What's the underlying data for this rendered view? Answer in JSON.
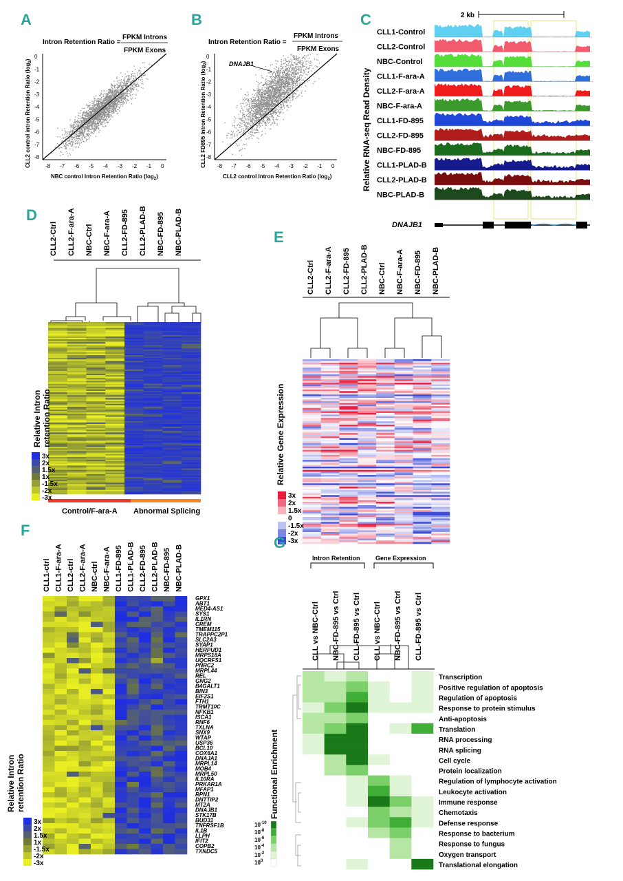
{
  "colors": {
    "panel_label": "#2aa59a",
    "yellow": "#e8ee22",
    "blue": "#1f2fe0",
    "red": "#e32020",
    "pink": "#f07aa8",
    "pale_blue": "#8a96e6",
    "green_dark": "#1f7d1f",
    "green_light": "#e2f5dc",
    "scatter_gray": "#8a8a8a",
    "control_bar": "#ea3a2a",
    "abnormal_bar": "#f28a2a"
  },
  "panelA": {
    "label": "A",
    "formula_lhs": "Intron Retention Ratio =",
    "formula_num": "FPKM Introns",
    "formula_den": "FPKM Exons",
    "xlabel": "NBC control Intron Retention Ratio (log",
    "ylabel": "CLL2 control intron Retention Ratio (log",
    "log_base": "2",
    "label_suffix": ")",
    "xticks": [
      "-8",
      "-7",
      "-6",
      "-5",
      "-4",
      "-3",
      "-2",
      "-1",
      "0"
    ],
    "yticks": [
      "0",
      "-1",
      "-2",
      "-3",
      "-4",
      "-5",
      "-6",
      "-7",
      "-8"
    ]
  },
  "panelB": {
    "label": "B",
    "formula_lhs": "Intron Retention Ratio =",
    "formula_num": "FPKM Introns",
    "formula_den": "FPKM Exons",
    "annotation": "DNAJB1",
    "xlabel": "CLL2 control Intron Retention Ratio (log",
    "ylabel": "CLL2 FD895 Intron Retention Ratio (log",
    "log_base": "2",
    "label_suffix": ")",
    "xticks": [
      "-8",
      "-7",
      "-6",
      "-5",
      "-4",
      "-3",
      "-2",
      "-1",
      "0"
    ],
    "yticks": [
      "0",
      "-1",
      "-2",
      "-3",
      "-4",
      "-5",
      "-6",
      "-7",
      "-8"
    ]
  },
  "panelC": {
    "label": "C",
    "scale": "2 kb",
    "ylabel": "Relative RNA-seq Read Density",
    "gene": "DNAJB1",
    "tracks": [
      {
        "name": "CLL1-Control",
        "color": "#5fd0f0",
        "intron": 0.05
      },
      {
        "name": "CLL2-Control",
        "color": "#f25a6e",
        "intron": 0.05
      },
      {
        "name": "NBC-Control",
        "color": "#55dd3a",
        "intron": 0.05
      },
      {
        "name": "CLL1-F-ara-A",
        "color": "#2f6fdc",
        "intron": 0.05
      },
      {
        "name": "CLL2-F-ara-A",
        "color": "#ee1c1c",
        "intron": 0.06
      },
      {
        "name": "NBC-F-ara-A",
        "color": "#3c9a2c",
        "intron": 0.08
      },
      {
        "name": "CLL1-FD-895",
        "color": "#1f48d8",
        "intron": 0.45
      },
      {
        "name": "CLL2-FD-895",
        "color": "#b01c1c",
        "intron": 0.5
      },
      {
        "name": "NBC-FD-895",
        "color": "#1c6a1c",
        "intron": 0.35
      },
      {
        "name": "CLL1-PLAD-B",
        "color": "#151a8c",
        "intron": 0.4
      },
      {
        "name": "CLL2-PLAD-B",
        "color": "#7a0d0d",
        "intron": 0.45
      },
      {
        "name": "NBC-PLAD-B",
        "color": "#1c4a1c",
        "intron": 0.35
      }
    ]
  },
  "panelD": {
    "label": "D",
    "columns": [
      "CLL2-Ctrl",
      "CLL2-F-ara-A",
      "NBC-Ctrl",
      "NBC-F-ara-A",
      "CLL2-FD-895",
      "CLL2-PLAD-B",
      "NBC-FD-895",
      "NBC-PLAD-B"
    ],
    "ylabel_line1": "Relative Intron",
    "ylabel_line2": "retention Ratio",
    "legend": [
      "3x",
      "2x",
      "1.5x",
      "1x",
      "-1.5x",
      "-2x",
      "-3x"
    ],
    "group_left": "Control/F-ara-A",
    "group_right": "Abnormal Splicing"
  },
  "panelE": {
    "label": "E",
    "columns": [
      "CLL2-Ctrl",
      "CLL2-F-ara-A",
      "CLL2-FD-895",
      "CLL2-PLAD-B",
      "NBC-Ctrl",
      "NBC-F-ara-A",
      "NBC-FD-895",
      "NBC-PLAD-B"
    ],
    "ylabel": "Relative Gene Expression",
    "legend": [
      "3x",
      "2x",
      "1.5x",
      "0",
      "-1.5x",
      "-2x",
      "-3x"
    ]
  },
  "panelF": {
    "label": "F",
    "columns": [
      "CLL1-ctrl",
      "CLL1-F-ara-A",
      "CLL2-ctrl",
      "CLL2-F-ara-A",
      "NBC-ctrl",
      "NBC-F-ara-A",
      "CLL1-FD-895",
      "CLL1-PLAD-B",
      "CLL2-FD-895",
      "CLL2-PLAD-B",
      "NBC-FD-895",
      "NBC-PLAD-B"
    ],
    "genes": [
      "GPX1",
      "ABT1",
      "MED4-AS1",
      "SYS1",
      "IL1RN",
      "CREM",
      "TMEM115",
      "TRAPPC2P1",
      "SLC2A3",
      "SYAP1",
      "HERPUD1",
      "MRPS18A",
      "UQCRFS1",
      "PNRC2",
      "MRPL44",
      "REL",
      "GNG2",
      "B4GALT1",
      "BIN3",
      "EIF2S1",
      "FTH1",
      "TRMT10C",
      "NFKB1",
      "ISCA1",
      "RNF6",
      "TXLNA",
      "SNX9",
      "WTAP",
      "USP36",
      "BCL10",
      "COX6A1",
      "DNAJA1",
      "MRPL14",
      "MOB4",
      "MRPL50",
      "IL10RA",
      "PRKAR1A",
      "MFAP1",
      "RPN1",
      "DNTTIP2",
      "MT2A",
      "DNAJB1",
      "STK17B",
      "BUD31",
      "TNFRSF1B",
      "IL1B",
      "LLPH",
      "IFIT2",
      "COPB2",
      "TXNDC5"
    ],
    "ylabel_line1": "Relative Intron",
    "ylabel_line2": "retention Ratio",
    "legend": [
      "3x",
      "2x",
      "1.5x",
      "1x",
      "-1.5x",
      "-2x",
      "-3x"
    ]
  },
  "panelG": {
    "label": "G",
    "group_left": "Intron Retention",
    "group_right": "Gene Expression",
    "columns": [
      "CLL vs NBC-Ctrl",
      "NBC-FD-895 vs Ctrl",
      "CLL-FD-895 vs Ctrl",
      "CLL vs NBC-Ctrl",
      "NBC-FD-895 vs Ctrl",
      "CLL-FD-895 vs Ctrl"
    ],
    "terms": [
      "Transcription",
      "Positive regulation of apoptosis",
      "Regulation of apoptosis",
      "Response to protein stimulus",
      "Anti-apoptosis",
      "Translation",
      "RNA processing",
      "RNA splicing",
      "Cell cycle",
      "Protein localization",
      "Regulation of lymphocyte activation",
      "Leukocyte activation",
      "Immune response",
      "Chemotaxis",
      "Defense response",
      "Response to bacterium",
      "Response to fungus",
      "Oxygen transport",
      "Translational elongation"
    ],
    "ylabel": "Functional Enrichment",
    "legend_base": "10",
    "legend_exps": [
      "-10",
      "-8",
      "-6",
      "-4",
      "-2",
      "0"
    ],
    "matrix": [
      [
        2,
        1,
        2,
        0,
        0,
        1
      ],
      [
        2,
        2,
        3,
        1,
        0,
        1
      ],
      [
        2,
        2,
        4,
        1,
        0,
        1
      ],
      [
        1,
        3,
        5,
        1,
        1,
        1
      ],
      [
        2,
        2,
        3,
        0,
        0,
        0
      ],
      [
        2,
        3,
        5,
        0,
        1,
        4
      ],
      [
        1,
        5,
        5,
        0,
        0,
        0
      ],
      [
        1,
        5,
        5,
        0,
        0,
        0
      ],
      [
        0,
        2,
        5,
        1,
        0,
        0
      ],
      [
        0,
        2,
        3,
        0,
        0,
        0
      ],
      [
        0,
        0,
        1,
        3,
        1,
        0
      ],
      [
        0,
        0,
        1,
        4,
        1,
        0
      ],
      [
        0,
        0,
        1,
        5,
        3,
        1
      ],
      [
        0,
        0,
        0,
        3,
        2,
        1
      ],
      [
        0,
        0,
        1,
        3,
        4,
        1
      ],
      [
        0,
        0,
        0,
        2,
        3,
        0
      ],
      [
        0,
        0,
        0,
        0,
        2,
        0
      ],
      [
        0,
        0,
        0,
        0,
        2,
        0
      ],
      [
        0,
        0,
        1,
        0,
        0,
        5
      ]
    ]
  }
}
